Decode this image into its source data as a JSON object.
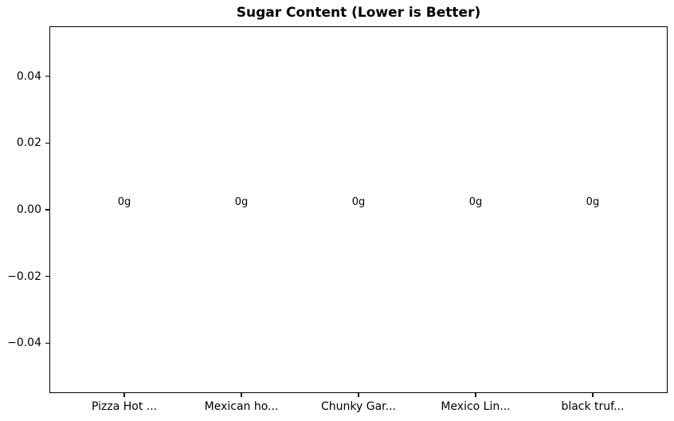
{
  "chart_data": {
    "type": "bar",
    "title": "Sugar Content (Lower is Better)",
    "categories": [
      "Pizza Hot ...",
      "Mexican ho...",
      "Chunky Gar...",
      "Mexico Lin...",
      "black truf..."
    ],
    "values": [
      0,
      0,
      0,
      0,
      0
    ],
    "bar_labels": [
      "0g",
      "0g",
      "0g",
      "0g",
      "0g"
    ],
    "xlabel": "",
    "ylabel": "",
    "ylim": [
      -0.055,
      0.055
    ],
    "yticks": [
      0.04,
      0.02,
      0.0,
      -0.02,
      -0.04
    ],
    "ytick_labels": [
      "0.04",
      "0.02",
      "0.00",
      "−0.02",
      "−0.04"
    ],
    "grid": false,
    "legend": null,
    "axis_color": "#000000",
    "background_color": "#ffffff"
  }
}
